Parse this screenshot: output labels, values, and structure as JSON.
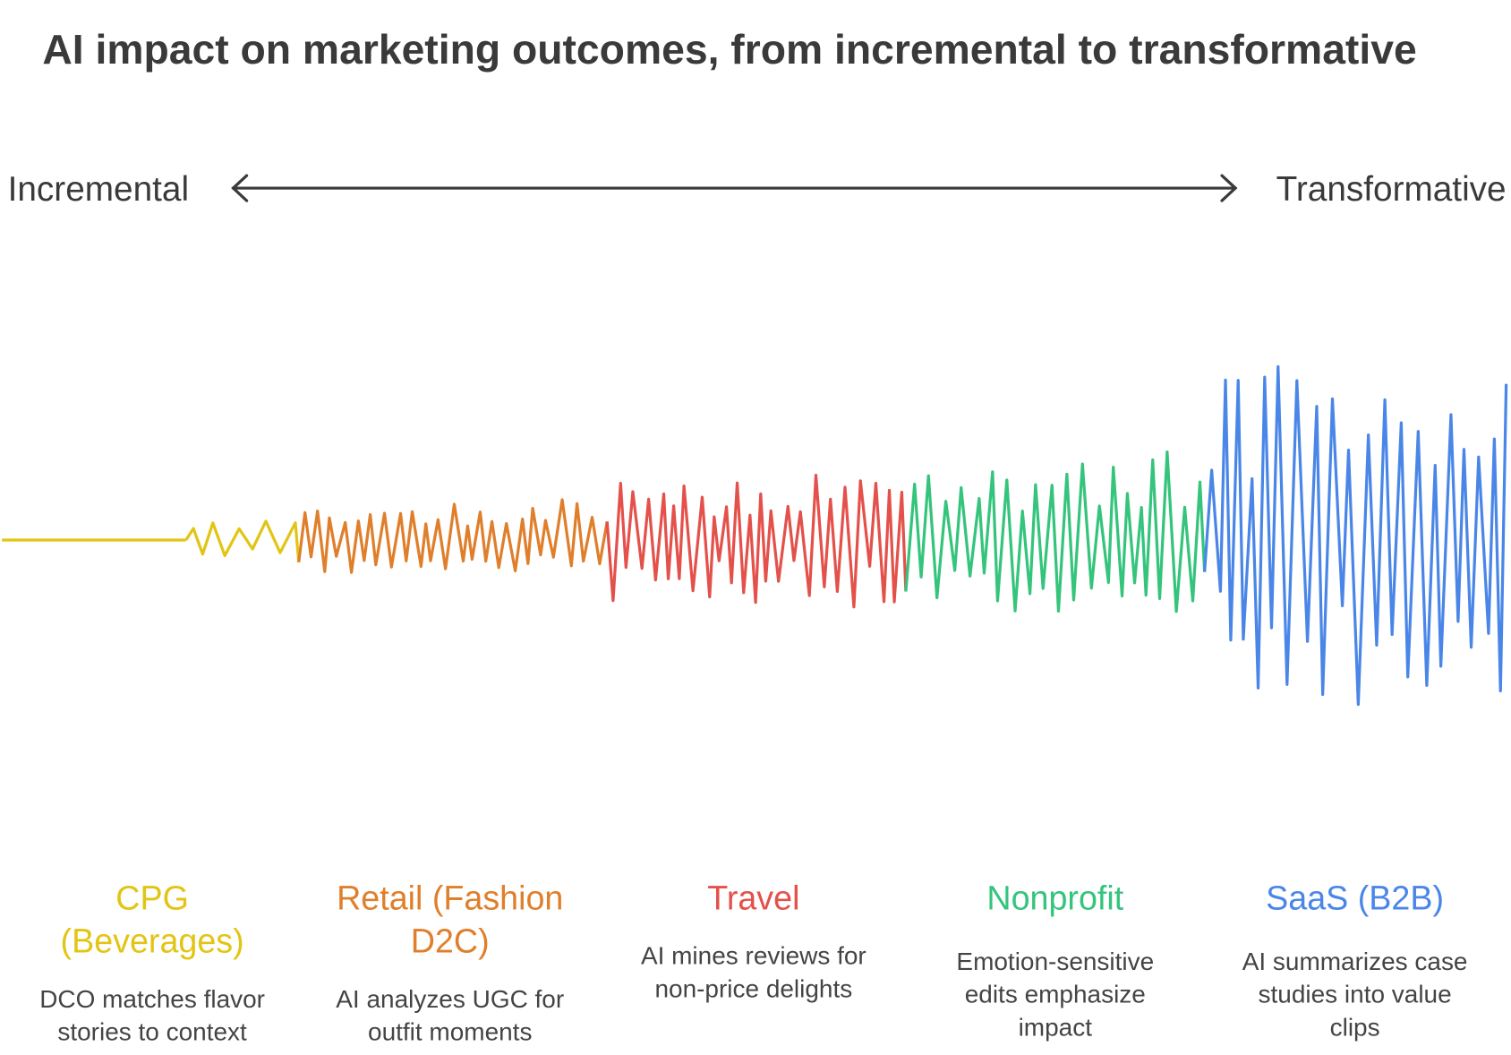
{
  "title": "AI impact on marketing outcomes, from incremental to transformative",
  "axis": {
    "left_label": "Incremental",
    "right_label": "Transformative",
    "arrow_color": "#3a3a3a"
  },
  "segments": [
    {
      "heading": [
        "CPG",
        "(Beverages)"
      ],
      "description": [
        "DCO matches flavor",
        "stories to context"
      ],
      "color": "#e2c514"
    },
    {
      "heading": [
        "Retail (Fashion",
        "D2C)"
      ],
      "description": [
        "AI analyzes UGC for",
        "outfit moments"
      ],
      "color": "#e07f2b"
    },
    {
      "heading": [
        "Travel"
      ],
      "description": [
        "AI mines reviews for",
        "non-price delights"
      ],
      "color": "#e4514b"
    },
    {
      "heading": [
        "Nonprofit"
      ],
      "description": [
        "Emotion-sensitive",
        "edits emphasize",
        "impact"
      ],
      "color": "#34c47c"
    },
    {
      "heading": [
        "SaaS (B2B)"
      ],
      "description": [
        "AI summarizes case",
        "studies into value",
        "clips"
      ],
      "color": "#4a86e8"
    }
  ]
}
